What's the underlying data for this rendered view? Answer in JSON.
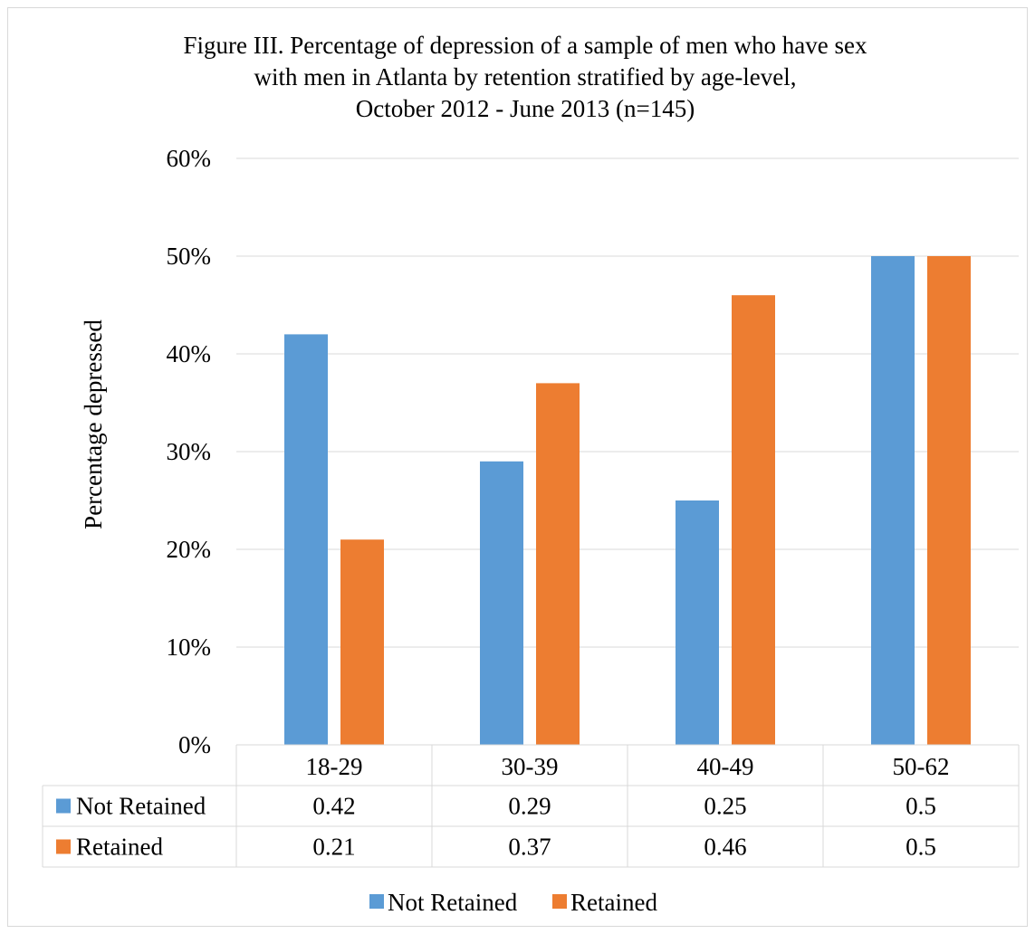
{
  "chart_data": {
    "type": "bar",
    "title_lines": [
      "Figure III. Percentage of depression of a sample of men who have sex",
      "with men in Atlanta by retention stratified by age-level,",
      "October 2012 - June 2013 (n=145)"
    ],
    "xlabel": "",
    "ylabel": "Percentage depressed",
    "categories": [
      "18-29",
      "30-39",
      "40-49",
      "50-62"
    ],
    "series": [
      {
        "name": "Not Retained",
        "color": "#5b9bd5",
        "values": [
          0.42,
          0.29,
          0.25,
          0.5
        ],
        "table_values": [
          "0.42",
          "0.29",
          "0.25",
          "0.5"
        ]
      },
      {
        "name": "Retained",
        "color": "#ed7d31",
        "values": [
          0.21,
          0.37,
          0.46,
          0.5
        ],
        "table_values": [
          "0.21",
          "0.37",
          "0.46",
          "0.5"
        ]
      }
    ],
    "ylim": [
      0,
      0.6
    ],
    "y_ticks": [
      0,
      0.1,
      0.2,
      0.3,
      0.4,
      0.5,
      0.6
    ],
    "y_tick_labels": [
      "0%",
      "10%",
      "20%",
      "30%",
      "40%",
      "50%",
      "60%"
    ],
    "grid": true,
    "data_table": true,
    "legend_position": "bottom",
    "gridline_color": "#d9d9d9"
  }
}
